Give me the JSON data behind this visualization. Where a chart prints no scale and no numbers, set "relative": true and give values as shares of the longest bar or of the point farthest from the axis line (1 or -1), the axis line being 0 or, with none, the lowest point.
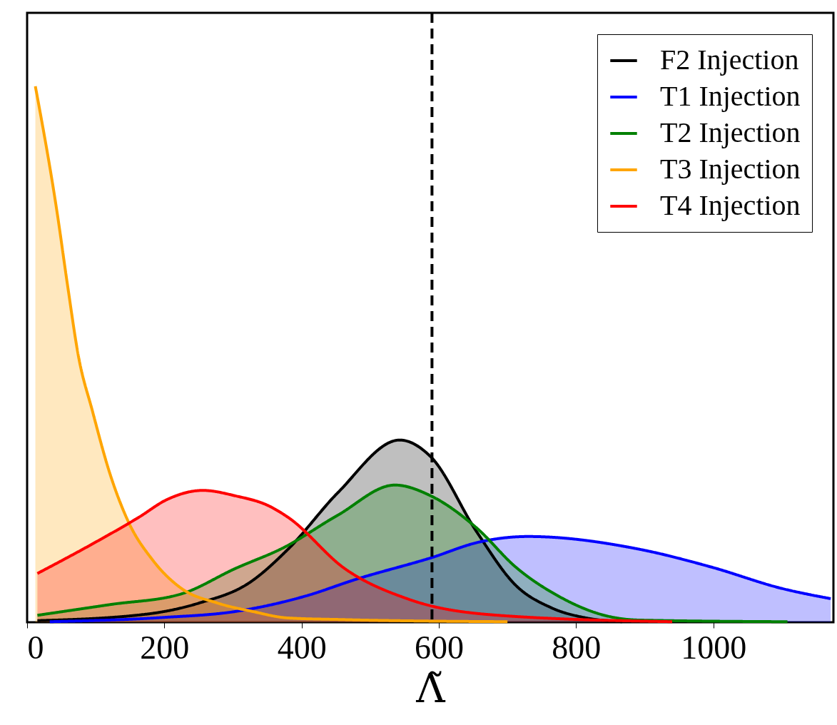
{
  "chart_data": {
    "type": "area",
    "xlabel": "Λ̃",
    "relative": true,
    "legend": "top right",
    "xlim": [
      0,
      1175
    ],
    "xticks": [
      0,
      200,
      400,
      600,
      800,
      1000
    ],
    "ref_lines": [
      {
        "axis": "x",
        "value": 590,
        "color": "#000000",
        "line_style": "dashed"
      }
    ],
    "series": [
      {
        "name": "F2 Injection",
        "color": "#000000",
        "x": [
          15,
          173,
          251,
          323,
          380,
          453,
          543,
          588,
          655,
          712,
          764,
          815,
          867
        ],
        "values": [
          0.003,
          0.015,
          0.036,
          0.073,
          0.136,
          0.242,
          0.34,
          0.309,
          0.169,
          0.069,
          0.027,
          0.008,
          0.001
        ]
      },
      {
        "name": "T1 Injection",
        "color": "#0000ff",
        "x": [
          33,
          199,
          303,
          406,
          479,
          588,
          660,
          730,
          893,
          997,
          1100,
          1171
        ],
        "values": [
          0.001,
          0.009,
          0.02,
          0.049,
          0.08,
          0.12,
          0.15,
          0.16,
          0.136,
          0.103,
          0.063,
          0.044
        ]
      },
      {
        "name": "T2 Injection",
        "color": "#008000",
        "x": [
          15,
          121,
          225,
          303,
          375,
          453,
          536,
          588,
          655,
          712,
          774,
          841,
          893,
          1108
        ],
        "values": [
          0.013,
          0.033,
          0.053,
          0.1,
          0.14,
          0.2,
          0.256,
          0.236,
          0.176,
          0.103,
          0.049,
          0.013,
          0.004,
          0.001
        ]
      },
      {
        "name": "T3 Injection",
        "color": "#ffa500",
        "x": [
          12,
          44,
          59,
          75,
          95,
          121,
          147,
          183,
          225,
          277,
          329,
          380,
          458,
          700
        ],
        "values": [
          1,
          0.762,
          0.628,
          0.495,
          0.395,
          0.276,
          0.189,
          0.116,
          0.063,
          0.036,
          0.02,
          0.008,
          0.005,
          0.001
        ]
      },
      {
        "name": "T4 Injection",
        "color": "#ff0000",
        "x": [
          15,
          95,
          163,
          204,
          256,
          303,
          354,
          380,
          463,
          556,
          686,
          940
        ],
        "values": [
          0.091,
          0.146,
          0.196,
          0.229,
          0.246,
          0.236,
          0.216,
          0.196,
          0.1,
          0.043,
          0.013,
          0.001
        ]
      }
    ]
  }
}
